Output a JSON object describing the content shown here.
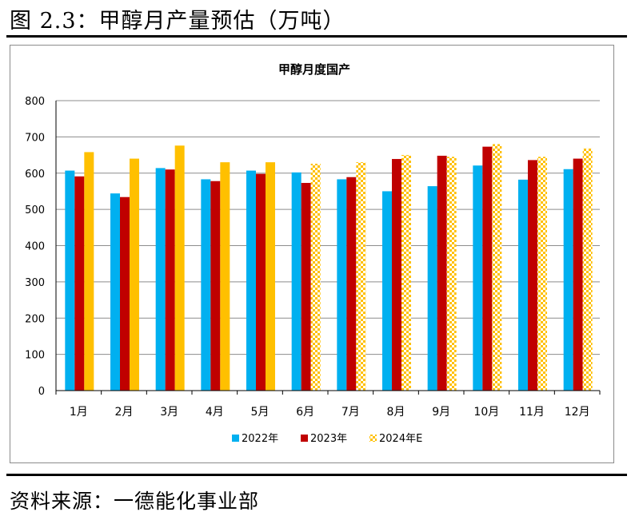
{
  "figure_title": "图 2.3：甲醇月产量预估（万吨）",
  "source_text": "资料来源：一德能化事业部",
  "colors": {
    "s2022": "#00B0F0",
    "s2023": "#C00000",
    "s2024": "#FFC000"
  },
  "chart_data": {
    "type": "bar",
    "title": "甲醇月度国产",
    "xlabel": "",
    "ylabel": "",
    "ylim": [
      0,
      800
    ],
    "yticks": [
      "0",
      "100",
      "200",
      "300",
      "400",
      "500",
      "600",
      "700",
      "800"
    ],
    "grid": true,
    "legend_position": "bottom",
    "categories": [
      "1月",
      "2月",
      "3月",
      "4月",
      "5月",
      "6月",
      "7月",
      "8月",
      "9月",
      "10月",
      "11月",
      "12月"
    ],
    "series": [
      {
        "name": "2022年",
        "color": "#00B0F0",
        "pattern": "solid",
        "values": [
          607,
          544,
          614,
          583,
          607,
          602,
          583,
          550,
          564,
          621,
          582,
          611
        ]
      },
      {
        "name": "2023年",
        "color": "#C00000",
        "pattern": "solid",
        "values": [
          591,
          534,
          610,
          578,
          598,
          573,
          589,
          639,
          648,
          673,
          636,
          640
        ]
      },
      {
        "name": "2024年E",
        "color": "#FFC000",
        "pattern": "solid-then-checker",
        "solid_until_index": 4,
        "values": [
          658,
          640,
          676,
          630,
          630,
          626,
          630,
          650,
          645,
          680,
          645,
          668
        ]
      }
    ]
  }
}
